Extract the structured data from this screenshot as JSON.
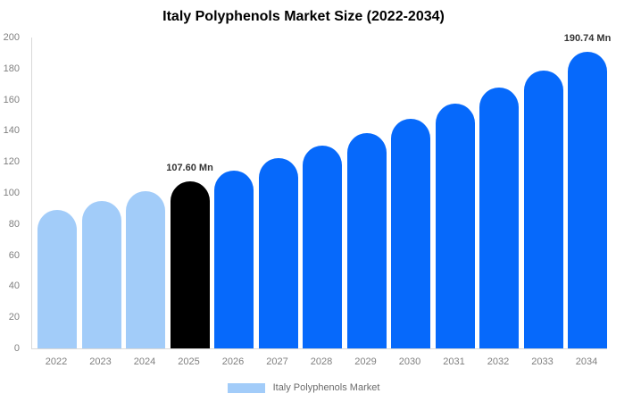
{
  "chart_data": {
    "type": "bar",
    "title": "Italy Polyphenols Market Size (2022-2034)",
    "unit": "Mn",
    "categories": [
      "2022",
      "2023",
      "2024",
      "2025",
      "2026",
      "2027",
      "2028",
      "2029",
      "2030",
      "2031",
      "2032",
      "2033",
      "2034"
    ],
    "values": [
      88.9,
      94.74,
      100.97,
      107.6,
      114.67,
      122.2,
      130.23,
      138.79,
      147.91,
      157.63,
      167.99,
      179.03,
      190.74
    ],
    "data_labels": [
      "",
      "",
      "",
      "107.60 Mn",
      "",
      "",
      "",
      "",
      "",
      "",
      "",
      "",
      "190.74 Mn"
    ],
    "bar_colors": [
      "#A2CCF9",
      "#A2CCF9",
      "#A2CCF9",
      "#000000",
      "#0669FB",
      "#0669FB",
      "#0669FB",
      "#0669FB",
      "#0669FB",
      "#0669FB",
      "#0669FB",
      "#0669FB",
      "#0669FB"
    ],
    "ylim": [
      0,
      200
    ],
    "yticks": [
      0,
      20,
      40,
      60,
      80,
      100,
      120,
      140,
      160,
      180,
      200
    ],
    "grid": false,
    "xlabel": "",
    "ylabel": "",
    "legend": {
      "label": "Italy Polyphenols Market",
      "swatch_color": "#A2CCF9",
      "position": "bottom"
    }
  },
  "colors": {
    "highlight_bar": "#000000",
    "series_blue": "#0669FB",
    "series_light_blue": "#A2CCF9",
    "axis_line": "#D9D9D9",
    "tick_text": "#7F7F7F",
    "data_label_text": "#333333",
    "legend_text": "#6B6B6B",
    "background": "#FFFFFF"
  }
}
